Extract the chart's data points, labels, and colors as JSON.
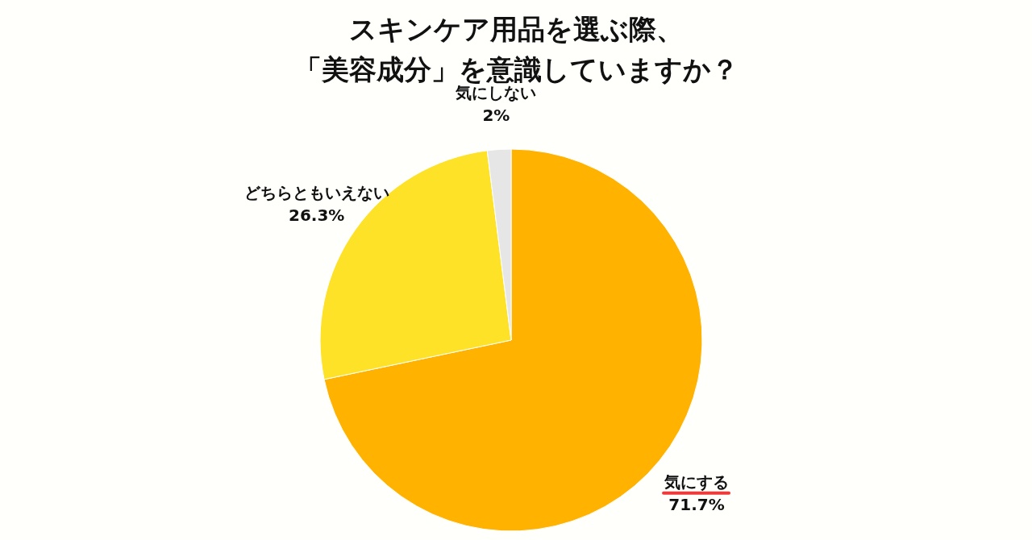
{
  "chart_data": {
    "type": "pie",
    "title": "スキンケア用品を選ぶ際、「美容成分」を意識していますか？",
    "categories": [
      "気にする",
      "どちらともいえない",
      "気にしない"
    ],
    "values": [
      71.7,
      26.3,
      2
    ],
    "value_labels": [
      "71.7%",
      "26.3%",
      "2%"
    ],
    "colors": [
      "#ffb300",
      "#fde228",
      "#e6e6e6"
    ]
  }
}
